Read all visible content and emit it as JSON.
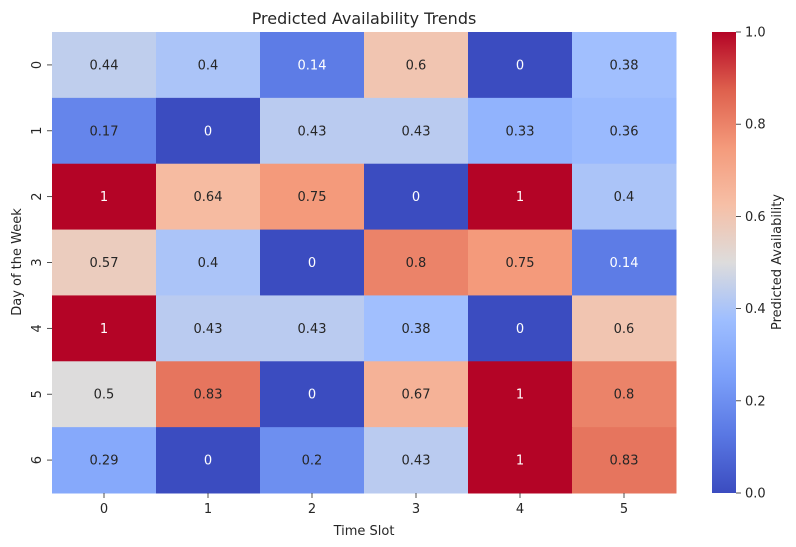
{
  "chart_data": {
    "type": "heatmap",
    "title": "Predicted Availability Trends",
    "xlabel": "Time Slot",
    "ylabel": "Day of the Week",
    "x_categories": [
      "0",
      "1",
      "2",
      "3",
      "4",
      "5"
    ],
    "y_categories": [
      "0",
      "1",
      "2",
      "3",
      "4",
      "5",
      "6"
    ],
    "values": [
      [
        0.44,
        0.4,
        0.14,
        0.6,
        0,
        0.38
      ],
      [
        0.17,
        0,
        0.43,
        0.43,
        0.33,
        0.36
      ],
      [
        1,
        0.64,
        0.75,
        0,
        1,
        0.4
      ],
      [
        0.57,
        0.4,
        0,
        0.8,
        0.75,
        0.14
      ],
      [
        1,
        0.43,
        0.43,
        0.38,
        0,
        0.6
      ],
      [
        0.5,
        0.83,
        0,
        0.67,
        1,
        0.8
      ],
      [
        0.29,
        0,
        0.2,
        0.43,
        1,
        0.83
      ]
    ],
    "colormap": "coolwarm",
    "colorbar": {
      "label": "Predicted Availability",
      "range": [
        0,
        1
      ],
      "ticks": [
        "0.0",
        "0.2",
        "0.4",
        "0.6",
        "0.8",
        "1.0"
      ]
    },
    "annotated": true,
    "grid": false
  }
}
